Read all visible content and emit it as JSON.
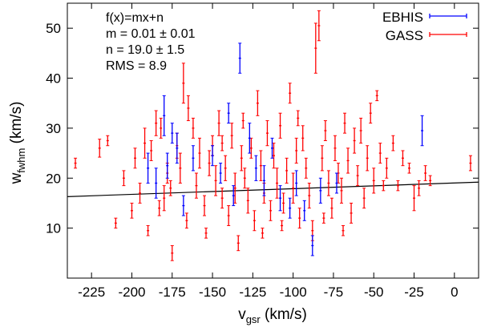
{
  "chart_data": {
    "type": "scatter",
    "title": "",
    "xlabel": {
      "main": "v",
      "sub": "gsr",
      "unit": " (km/s)"
    },
    "ylabel": {
      "main": "w",
      "sub": "fwhm",
      "unit": " (km/s)"
    },
    "xlim": [
      -240,
      15
    ],
    "ylim": [
      0,
      55
    ],
    "xticks": [
      -225,
      -200,
      -175,
      -150,
      -125,
      -100,
      -75,
      -50,
      -25,
      0
    ],
    "yticks": [
      10,
      20,
      30,
      40,
      50
    ],
    "annotations": [
      "f(x)=mx+n",
      "m = 0.01 ± 0.01",
      "n = 19.0 ± 1.5",
      "RMS = 8.9"
    ],
    "fit_line": {
      "x": [
        -240,
        15
      ],
      "y": [
        16.3,
        19.2
      ],
      "color": "#000000"
    },
    "series": [
      {
        "name": "EBHIS",
        "color": "#0000ff",
        "points": [
          [
            -180,
            32.5,
            4.0
          ],
          [
            -178,
            22.5,
            2.5
          ],
          [
            -172,
            26.0,
            3.0
          ],
          [
            -175,
            29.0,
            2.0
          ],
          [
            -162,
            24.0,
            2.5
          ],
          [
            -150,
            24.5,
            2.0
          ],
          [
            -140,
            33.0,
            2.0
          ],
          [
            -133,
            44.0,
            3.0
          ],
          [
            -127,
            28.0,
            3.0
          ],
          [
            -123,
            22.0,
            2.5
          ],
          [
            -118,
            19.5,
            3.0
          ],
          [
            -113,
            26.0,
            2.0
          ],
          [
            -108,
            16.0,
            2.5
          ],
          [
            -102,
            14.0,
            2.0
          ],
          [
            -98,
            19.0,
            2.5
          ],
          [
            -93,
            13.5,
            2.0
          ],
          [
            -88,
            6.5,
            2.0
          ],
          [
            -83,
            17.5,
            2.5
          ],
          [
            -73,
            19.0,
            2.0
          ],
          [
            -20,
            29.5,
            3.0
          ],
          [
            -185,
            19.0,
            3.0
          ],
          [
            -168,
            14.5,
            2.0
          ],
          [
            -190,
            22.0,
            3.0
          ],
          [
            -145,
            21.0,
            2.0
          ],
          [
            -137,
            16.5,
            2.0
          ]
        ]
      },
      {
        "name": "GASS",
        "color": "#ff0000",
        "points": [
          [
            -235,
            23.0,
            1.0
          ],
          [
            -220,
            26.0,
            1.8
          ],
          [
            -215,
            27.5,
            1.0
          ],
          [
            -200,
            13.5,
            1.5
          ],
          [
            -198,
            24.0,
            2.0
          ],
          [
            -195,
            17.0,
            2.0
          ],
          [
            -192,
            27.0,
            3.0
          ],
          [
            -188,
            25.5,
            2.0
          ],
          [
            -185,
            31.0,
            2.5
          ],
          [
            -182,
            30.0,
            2.0
          ],
          [
            -180,
            16.0,
            2.5
          ],
          [
            -178,
            21.0,
            2.0
          ],
          [
            -175,
            5.0,
            1.5
          ],
          [
            -172,
            26.5,
            2.5
          ],
          [
            -170,
            22.0,
            3.0
          ],
          [
            -168,
            39.0,
            4.0
          ],
          [
            -165,
            34.0,
            2.5
          ],
          [
            -162,
            30.0,
            2.0
          ],
          [
            -160,
            18.5,
            2.5
          ],
          [
            -158,
            25.0,
            3.0
          ],
          [
            -155,
            14.5,
            2.0
          ],
          [
            -152,
            23.0,
            2.5
          ],
          [
            -150,
            26.5,
            2.0
          ],
          [
            -148,
            19.5,
            3.0
          ],
          [
            -146,
            31.0,
            2.5
          ],
          [
            -144,
            16.0,
            2.0
          ],
          [
            -142,
            22.0,
            2.5
          ],
          [
            -140,
            12.5,
            2.0
          ],
          [
            -138,
            28.5,
            2.5
          ],
          [
            -136,
            18.0,
            3.0
          ],
          [
            -134,
            7.0,
            1.5
          ],
          [
            -132,
            24.0,
            2.5
          ],
          [
            -130,
            20.0,
            2.0
          ],
          [
            -128,
            15.5,
            2.5
          ],
          [
            -126,
            26.0,
            2.0
          ],
          [
            -124,
            11.5,
            2.0
          ],
          [
            -122,
            35.0,
            2.5
          ],
          [
            -120,
            22.5,
            3.0
          ],
          [
            -118,
            17.0,
            2.0
          ],
          [
            -116,
            29.0,
            2.5
          ],
          [
            -114,
            13.5,
            2.0
          ],
          [
            -112,
            24.5,
            2.5
          ],
          [
            -110,
            19.0,
            3.0
          ],
          [
            -108,
            30.5,
            2.5
          ],
          [
            -106,
            15.0,
            2.0
          ],
          [
            -104,
            21.5,
            2.5
          ],
          [
            -102,
            37.0,
            2.0
          ],
          [
            -100,
            18.0,
            3.0
          ],
          [
            -98,
            25.5,
            2.5
          ],
          [
            -96,
            12.0,
            2.0
          ],
          [
            -94,
            28.0,
            2.5
          ],
          [
            -92,
            22.0,
            2.0
          ],
          [
            -90,
            16.5,
            2.5
          ],
          [
            -88,
            9.5,
            2.0
          ],
          [
            -86,
            46.0,
            5.0
          ],
          [
            -84,
            50.5,
            3.0
          ],
          [
            -82,
            24.0,
            2.5
          ],
          [
            -80,
            29.5,
            2.0
          ],
          [
            -78,
            19.0,
            2.5
          ],
          [
            -76,
            14.0,
            2.0
          ],
          [
            -74,
            26.0,
            2.5
          ],
          [
            -72,
            21.0,
            2.0
          ],
          [
            -70,
            17.5,
            2.5
          ],
          [
            -68,
            31.0,
            2.0
          ],
          [
            -66,
            23.5,
            2.5
          ],
          [
            -64,
            13.0,
            2.0
          ],
          [
            -62,
            27.5,
            2.5
          ],
          [
            -60,
            20.5,
            2.0
          ],
          [
            -58,
            29.5,
            2.5
          ],
          [
            -56,
            16.0,
            2.0
          ],
          [
            -54,
            24.0,
            2.5
          ],
          [
            -52,
            33.0,
            2.0
          ],
          [
            -50,
            19.5,
            2.5
          ],
          [
            -48,
            36.5,
            1.0
          ],
          [
            -46,
            25.0,
            2.0
          ],
          [
            -44,
            18.5,
            1.0
          ],
          [
            -42,
            22.0,
            2.0
          ],
          [
            -38,
            27.0,
            1.5
          ],
          [
            -35,
            18.5,
            1.0
          ],
          [
            -32,
            24.0,
            1.5
          ],
          [
            -28,
            22.0,
            1.0
          ],
          [
            -25,
            16.0,
            2.5
          ],
          [
            -22,
            18.0,
            1.5
          ],
          [
            -18,
            21.0,
            1.5
          ],
          [
            -15,
            19.5,
            1.0
          ],
          [
            10,
            23.0,
            1.5
          ],
          [
            -210,
            11.0,
            1.0
          ],
          [
            -205,
            20.0,
            1.5
          ],
          [
            -190,
            9.5,
            1.0
          ],
          [
            -183,
            14.0,
            1.5
          ],
          [
            -176,
            18.0,
            1.5
          ],
          [
            -166,
            11.5,
            1.5
          ],
          [
            -154,
            9.0,
            1.0
          ],
          [
            -144,
            27.0,
            1.5
          ],
          [
            -131,
            31.5,
            1.5
          ],
          [
            -119,
            9.0,
            1.0
          ],
          [
            -107,
            10.5,
            1.0
          ],
          [
            -97,
            32.0,
            1.5
          ],
          [
            -81,
            12.0,
            1.0
          ],
          [
            -69,
            9.5,
            1.0
          ]
        ]
      }
    ]
  }
}
